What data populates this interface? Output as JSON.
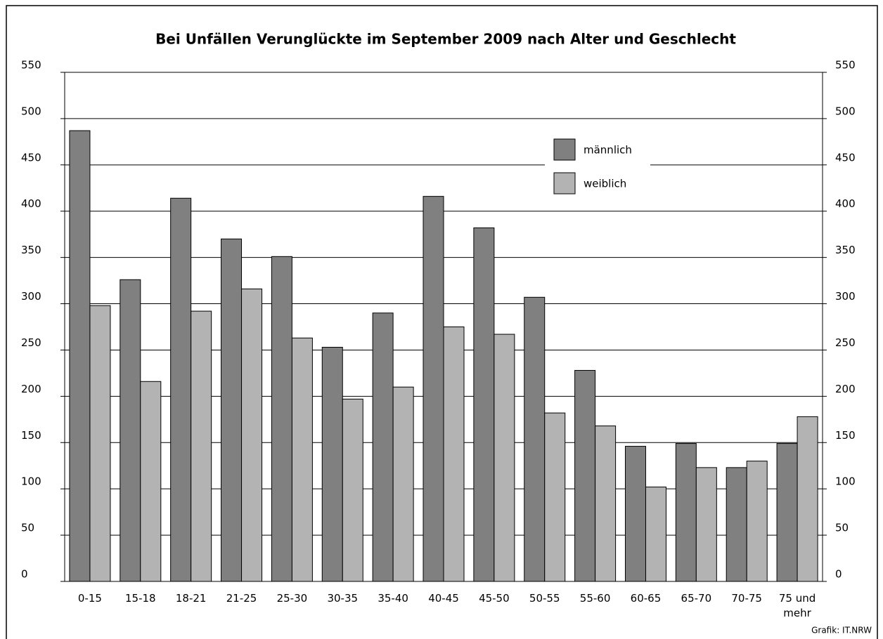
{
  "chart_data": {
    "type": "bar",
    "title": "Bei Unfällen Verunglückte im September 2009 nach Alter und Geschlecht",
    "categories": [
      "0-15",
      "15-18",
      "18-21",
      "21-25",
      "25-30",
      "30-35",
      "35-40",
      "40-45",
      "45-50",
      "50-55",
      "55-60",
      "60-65",
      "65-70",
      "70-75",
      "75 und mehr"
    ],
    "series": [
      {
        "name": "männlich",
        "color": "#808080",
        "values": [
          487,
          326,
          414,
          370,
          351,
          253,
          290,
          416,
          382,
          307,
          228,
          146,
          149,
          123,
          149
        ]
      },
      {
        "name": "weiblich",
        "color": "#b3b3b3",
        "values": [
          298,
          216,
          292,
          316,
          263,
          197,
          210,
          275,
          267,
          182,
          168,
          102,
          123,
          130,
          178
        ]
      }
    ],
    "ylim": [
      0,
      550
    ],
    "yticks": [
      0,
      50,
      100,
      150,
      200,
      250,
      300,
      350,
      400,
      450,
      500,
      550
    ],
    "y2lim": [
      0,
      550
    ],
    "y2ticks": [
      0,
      50,
      100,
      150,
      200,
      250,
      300,
      350,
      400,
      450,
      500,
      550
    ],
    "grid": true,
    "legend": "top-right",
    "source": "Grafik: IT.NRW"
  }
}
